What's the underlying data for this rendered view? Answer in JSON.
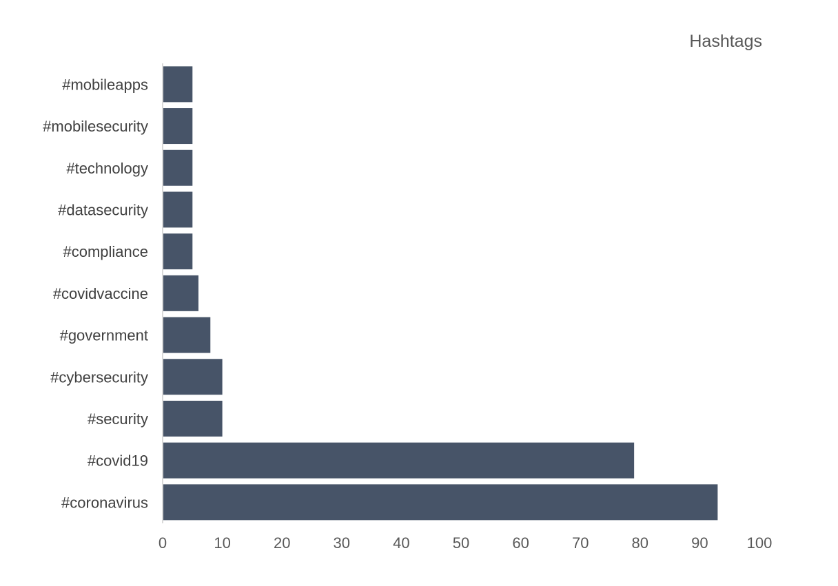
{
  "chart_data": {
    "type": "bar",
    "orientation": "horizontal",
    "title": "Hashtags",
    "xlabel": "",
    "ylabel": "",
    "categories": [
      "#mobileapps",
      "#mobilesecurity",
      "#technology",
      "#datasecurity",
      "#compliance",
      "#covidvaccine",
      "#government",
      "#cybersecurity",
      "#security",
      "#covid19",
      "#coronavirus"
    ],
    "values": [
      5,
      5,
      5,
      5,
      5,
      6,
      8,
      10,
      10,
      79,
      93
    ],
    "xlim": [
      0,
      100
    ],
    "xticks": [
      "0",
      "10",
      "20",
      "30",
      "40",
      "50",
      "60",
      "70",
      "80",
      "90",
      "100"
    ],
    "grid": false,
    "legend": "none",
    "colors": {
      "bar": "#475468",
      "axis": "#d9d9d9",
      "text": "#404040",
      "tick_text": "#595959"
    }
  }
}
